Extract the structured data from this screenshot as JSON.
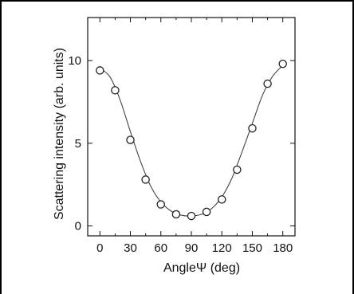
{
  "chart_data": {
    "type": "scatter",
    "title": "",
    "xlabel": "AngleΨ (deg)",
    "ylabel": "Scattering intensity (arb. units)",
    "xlim": [
      -12,
      192
    ],
    "ylim": [
      -0.6,
      12.6
    ],
    "xticks": [
      0,
      30,
      60,
      90,
      120,
      150,
      180
    ],
    "xminor_ticks": [
      15,
      45,
      75,
      105,
      135,
      165
    ],
    "yticks": [
      0,
      5,
      10
    ],
    "grid": false,
    "legend": "none",
    "series": [
      {
        "type": "scatter",
        "marker": "open-circle",
        "x": [
          0,
          15,
          30,
          45,
          60,
          75,
          90,
          105,
          120,
          135,
          150,
          165,
          180
        ],
        "y": [
          9.4,
          8.2,
          5.2,
          2.8,
          1.3,
          0.7,
          0.6,
          0.85,
          1.6,
          3.4,
          5.9,
          8.6,
          9.8
        ]
      },
      {
        "type": "line",
        "style": "smooth-fit",
        "x": [
          0,
          10,
          20,
          30,
          40,
          50,
          60,
          70,
          80,
          90,
          100,
          110,
          120,
          130,
          140,
          150,
          160,
          170,
          180
        ],
        "y": [
          9.55,
          9.0,
          7.6,
          5.7,
          3.9,
          2.4,
          1.45,
          0.9,
          0.65,
          0.6,
          0.7,
          1.05,
          1.75,
          2.9,
          4.5,
          6.2,
          7.9,
          9.05,
          9.7
        ]
      }
    ],
    "colors": {
      "axes": "#111111",
      "line": "#444444",
      "marker_edge": "#222222",
      "marker_fill": "#ffffff",
      "frame": "#000000"
    }
  }
}
